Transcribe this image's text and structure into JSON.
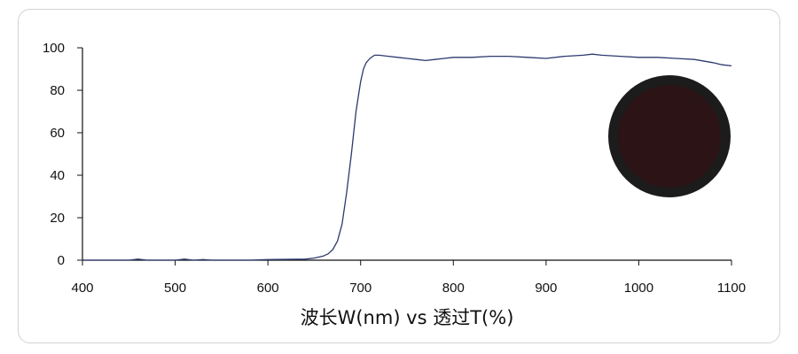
{
  "chart_data": {
    "type": "line",
    "xlabel": "波长W(nm) vs 透过T(%)",
    "ylabel": "",
    "xlim": [
      400,
      1100
    ],
    "ylim": [
      0,
      100
    ],
    "x_ticks": [
      400,
      500,
      600,
      700,
      800,
      900,
      1000,
      1100
    ],
    "y_ticks": [
      0,
      20,
      40,
      60,
      80,
      100
    ],
    "grid": false,
    "line_color": "#2d3a6e",
    "filter_swatch_color": "#2b1316",
    "series": [
      {
        "x": [
          400,
          450,
          460,
          470,
          500,
          510,
          520,
          530,
          540,
          580,
          600,
          640,
          650,
          660,
          665,
          670,
          675,
          680,
          685,
          690,
          695,
          700,
          703,
          706,
          710,
          715,
          720,
          730,
          740,
          750,
          760,
          770,
          780,
          790,
          800,
          820,
          840,
          860,
          880,
          900,
          920,
          940,
          950,
          960,
          980,
          1000,
          1020,
          1040,
          1060,
          1080,
          1090,
          1100
        ],
        "y": [
          0,
          0,
          0.5,
          0,
          0,
          0.5,
          0,
          0.3,
          0,
          0,
          0.3,
          0.5,
          1,
          2,
          3,
          5,
          9,
          17,
          32,
          50,
          70,
          84,
          90,
          93,
          95,
          96.5,
          96.5,
          96,
          95.5,
          95,
          94.5,
          94,
          94.5,
          95,
          95.5,
          95.5,
          96,
          96,
          95.5,
          95,
          96,
          96.5,
          97,
          96.5,
          96,
          95.5,
          95.5,
          95,
          94.5,
          93,
          92,
          91.5
        ]
      }
    ]
  }
}
